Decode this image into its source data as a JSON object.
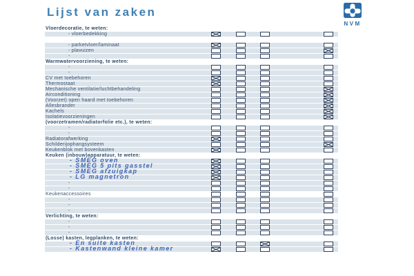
{
  "document": {
    "title": "Lijst van zaken",
    "logo_label": "NVM"
  },
  "colors": {
    "title_blue": "#3f80b2",
    "logo_blue": "#2a6ba8",
    "ink_navy": "#35506e",
    "row_band": "#dce4eb",
    "checkbox_border": "#2c3e5c",
    "handwriting_blue": "#4065b2"
  },
  "checklist": {
    "columns": 4,
    "rows": [
      {
        "type": "header",
        "label": "Vloerdecoratie, te weten:"
      },
      {
        "type": "item",
        "indent": true,
        "label": "- vloerbedekking",
        "checks": [
          true,
          false,
          false,
          false
        ]
      },
      {
        "type": "gap",
        "label": ""
      },
      {
        "type": "item",
        "indent": true,
        "label": "- parketvloer/laminaat",
        "checks": [
          true,
          false,
          false,
          false
        ]
      },
      {
        "type": "item",
        "indent": true,
        "label": "- plavuizen",
        "checks": [
          false,
          false,
          false,
          true
        ]
      },
      {
        "type": "item",
        "indent": true,
        "label": "-",
        "checks": [
          false,
          false,
          false,
          false
        ]
      },
      {
        "type": "header",
        "label": "Warmwatervoorziening, te weten:"
      },
      {
        "type": "item",
        "indent": true,
        "label": "-",
        "checks": [
          false,
          false,
          false,
          false
        ]
      },
      {
        "type": "item",
        "indent": true,
        "label": "-",
        "checks": [
          false,
          false,
          false,
          false
        ]
      },
      {
        "type": "item",
        "label": "CV met toebehoren",
        "checks": [
          true,
          false,
          false,
          false
        ]
      },
      {
        "type": "item",
        "label": "Thermostaat",
        "checks": [
          true,
          false,
          false,
          false
        ]
      },
      {
        "type": "item",
        "label": "Mechanische ventilatie/luchtbehandeling",
        "checks": [
          false,
          false,
          false,
          true
        ]
      },
      {
        "type": "item",
        "label": "Airconditioning",
        "checks": [
          false,
          false,
          false,
          true
        ]
      },
      {
        "type": "item",
        "label": "(Voorzet) open haard met toebehoren",
        "checks": [
          false,
          false,
          false,
          true
        ]
      },
      {
        "type": "item",
        "label": "Allesbrander",
        "checks": [
          false,
          false,
          false,
          true
        ]
      },
      {
        "type": "item",
        "label": "Kachels",
        "checks": [
          false,
          false,
          false,
          true
        ]
      },
      {
        "type": "item",
        "label": "Isolatievoorzieningen",
        "checks": [
          false,
          false,
          false,
          true
        ]
      },
      {
        "type": "header",
        "label": "(voorzetramen/radiatorfolie etc.), te weten:"
      },
      {
        "type": "item",
        "indent": true,
        "label": "-",
        "checks": [
          false,
          false,
          false,
          false
        ]
      },
      {
        "type": "item",
        "indent": true,
        "label": "-",
        "checks": [
          false,
          false,
          false,
          false
        ]
      },
      {
        "type": "item",
        "label": "Radiatorafwerking",
        "checks": [
          true,
          false,
          false,
          false
        ]
      },
      {
        "type": "item",
        "label": "Schilderijophangsysteem",
        "checks": [
          false,
          false,
          false,
          true
        ]
      },
      {
        "type": "item",
        "label": "Keukenblok met bovenkasten",
        "checks": [
          true,
          false,
          false,
          false
        ]
      },
      {
        "type": "header",
        "label": "Keuken (inbouw)apparatuur, te weten:"
      },
      {
        "type": "item",
        "indent": true,
        "handwritten": true,
        "label": "- SMEG oven",
        "checks": [
          true,
          false,
          false,
          false
        ]
      },
      {
        "type": "item",
        "indent": true,
        "handwritten": true,
        "label": "- SMEG 5 pits gasstel",
        "checks": [
          true,
          false,
          false,
          false
        ]
      },
      {
        "type": "item",
        "indent": true,
        "handwritten": true,
        "label": "- SMEG afzuigkap",
        "checks": [
          true,
          false,
          false,
          false
        ]
      },
      {
        "type": "item",
        "indent": true,
        "handwritten": true,
        "label": "- LG magnetron",
        "checks": [
          true,
          false,
          false,
          false
        ]
      },
      {
        "type": "item",
        "indent": true,
        "label": "-",
        "checks": [
          false,
          false,
          false,
          false
        ]
      },
      {
        "type": "item",
        "indent": true,
        "label": "-",
        "checks": [
          false,
          false,
          false,
          false
        ]
      },
      {
        "type": "item",
        "band": false,
        "label": "Keukenaccessoires",
        "checks": [
          false,
          false,
          false,
          false
        ]
      },
      {
        "type": "item",
        "indent": true,
        "label": "-",
        "checks": [
          false,
          false,
          false,
          false
        ]
      },
      {
        "type": "item",
        "indent": true,
        "label": "-",
        "checks": [
          false,
          false,
          false,
          false
        ]
      },
      {
        "type": "item",
        "indent": true,
        "label": "-",
        "checks": [
          false,
          false,
          false,
          false
        ]
      },
      {
        "type": "header",
        "label": "Verlichting, te weten:"
      },
      {
        "type": "item",
        "indent": true,
        "label": "-",
        "checks": [
          false,
          false,
          false,
          false
        ]
      },
      {
        "type": "item",
        "indent": true,
        "label": "-",
        "checks": [
          false,
          false,
          false,
          false
        ]
      },
      {
        "type": "item",
        "indent": true,
        "label": "-",
        "checks": [
          false,
          false,
          false,
          false
        ]
      },
      {
        "type": "header",
        "label": "(Losse) kasten, legplanken, te weten:"
      },
      {
        "type": "item",
        "indent": true,
        "handwritten": true,
        "label": "- En suite kasten",
        "checks": [
          false,
          false,
          true,
          false
        ]
      },
      {
        "type": "item",
        "indent": true,
        "handwritten": true,
        "label": "- Kastenwand kleine kamer",
        "checks": [
          true,
          false,
          false,
          false
        ]
      }
    ]
  }
}
